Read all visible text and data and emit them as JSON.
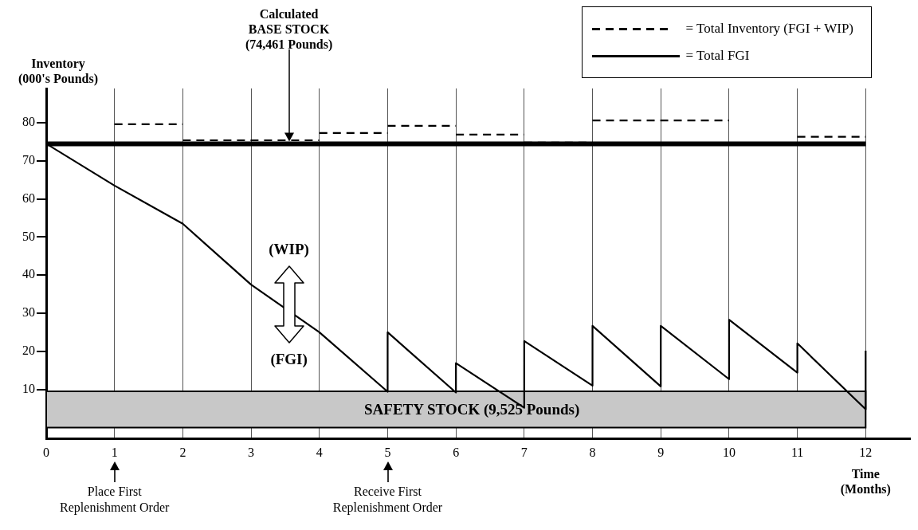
{
  "chart_data": {
    "type": "line",
    "ylabel": "Inventory\n(000's Pounds)",
    "xlabel": "Time\n(Months)",
    "xlim": [
      0,
      12.65
    ],
    "xticks": [
      0,
      1,
      2,
      3,
      4,
      5,
      6,
      7,
      8,
      9,
      10,
      11,
      12
    ],
    "ylim": [
      -3,
      89
    ],
    "yticks": [
      10,
      20,
      30,
      40,
      50,
      60,
      70,
      80
    ],
    "grid": "x",
    "legend": "top right",
    "series": [
      {
        "name": "= Total Inventory (FGI + WIP)",
        "color": "#000000",
        "line_style": "dashed",
        "x": [
          1,
          2,
          null,
          2,
          4,
          null,
          4,
          5,
          null,
          5,
          6,
          null,
          6,
          7,
          null,
          7,
          8,
          null,
          8,
          10,
          null,
          10,
          11,
          null,
          11,
          12
        ],
        "values": [
          79.6,
          79.6,
          null,
          75.4,
          75.4,
          null,
          77.3,
          77.3,
          null,
          79.2,
          79.2,
          null,
          76.9,
          76.9,
          null,
          74.8,
          74.8,
          null,
          80.6,
          80.6,
          null,
          74.4,
          74.4,
          null,
          76.3,
          76.3
        ]
      },
      {
        "name": "= Total FGI",
        "color": "#000000",
        "line_style": "solid",
        "x": [
          0,
          1,
          2,
          3,
          4,
          5,
          5,
          6,
          6,
          7,
          7,
          8,
          8,
          9,
          9,
          10,
          10,
          11,
          11,
          12,
          12
        ],
        "values": [
          74.5,
          63.5,
          53.5,
          37.5,
          25,
          9.4,
          25,
          9.2,
          16.9,
          5.2,
          22.7,
          11,
          26.7,
          10.8,
          26.7,
          12.7,
          28.3,
          14.4,
          22.1,
          4.8,
          20.2
        ]
      }
    ],
    "ref_lines": [
      {
        "axis": "y",
        "value": 74.461,
        "label": "Calculated\nBASE STOCK\n(74,461 Pounds)",
        "color": "#000000"
      }
    ],
    "bands": [
      {
        "axis": "y",
        "from": 0,
        "to": 9.525,
        "label": "SAFETY STOCK (9,525 Pounds)",
        "color": "#c8c8c8"
      }
    ],
    "annotations": [
      "Place First\nReplenishment Order",
      "Receive First\nReplenishment Order",
      "(WIP)",
      "(FGI)"
    ]
  }
}
